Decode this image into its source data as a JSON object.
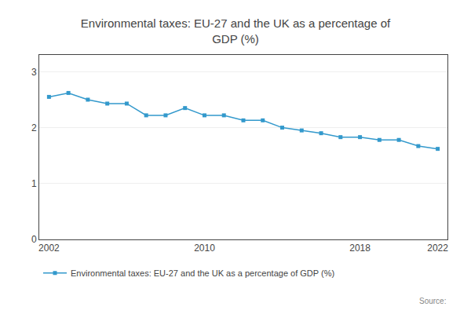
{
  "chart_data": {
    "type": "line",
    "title": "Environmental taxes: EU-27 and the UK as a percentage of\nGDP (%)",
    "x": [
      2002,
      2003,
      2004,
      2005,
      2006,
      2007,
      2008,
      2009,
      2010,
      2011,
      2012,
      2013,
      2014,
      2015,
      2016,
      2017,
      2018,
      2019,
      2020,
      2021,
      2022
    ],
    "series": [
      {
        "name": "Environmental taxes: EU-27 and the UK as a percentage of GDP (%)",
        "color": "#3399cc",
        "marker": "square",
        "values": [
          2.55,
          2.62,
          2.5,
          2.43,
          2.43,
          2.22,
          2.22,
          2.35,
          2.22,
          2.22,
          2.13,
          2.13,
          2.0,
          1.95,
          1.9,
          1.83,
          1.83,
          1.78,
          1.78,
          1.67,
          1.62
        ]
      }
    ],
    "xlim": [
      2001.5,
      2022.5
    ],
    "xticks": [
      2002,
      2010,
      2018,
      2022
    ],
    "ylim": [
      0,
      3.3
    ],
    "yticks": [
      0,
      1,
      2,
      3
    ],
    "grid": "y",
    "legend": "bottom",
    "annotations": [
      "Source:"
    ]
  }
}
